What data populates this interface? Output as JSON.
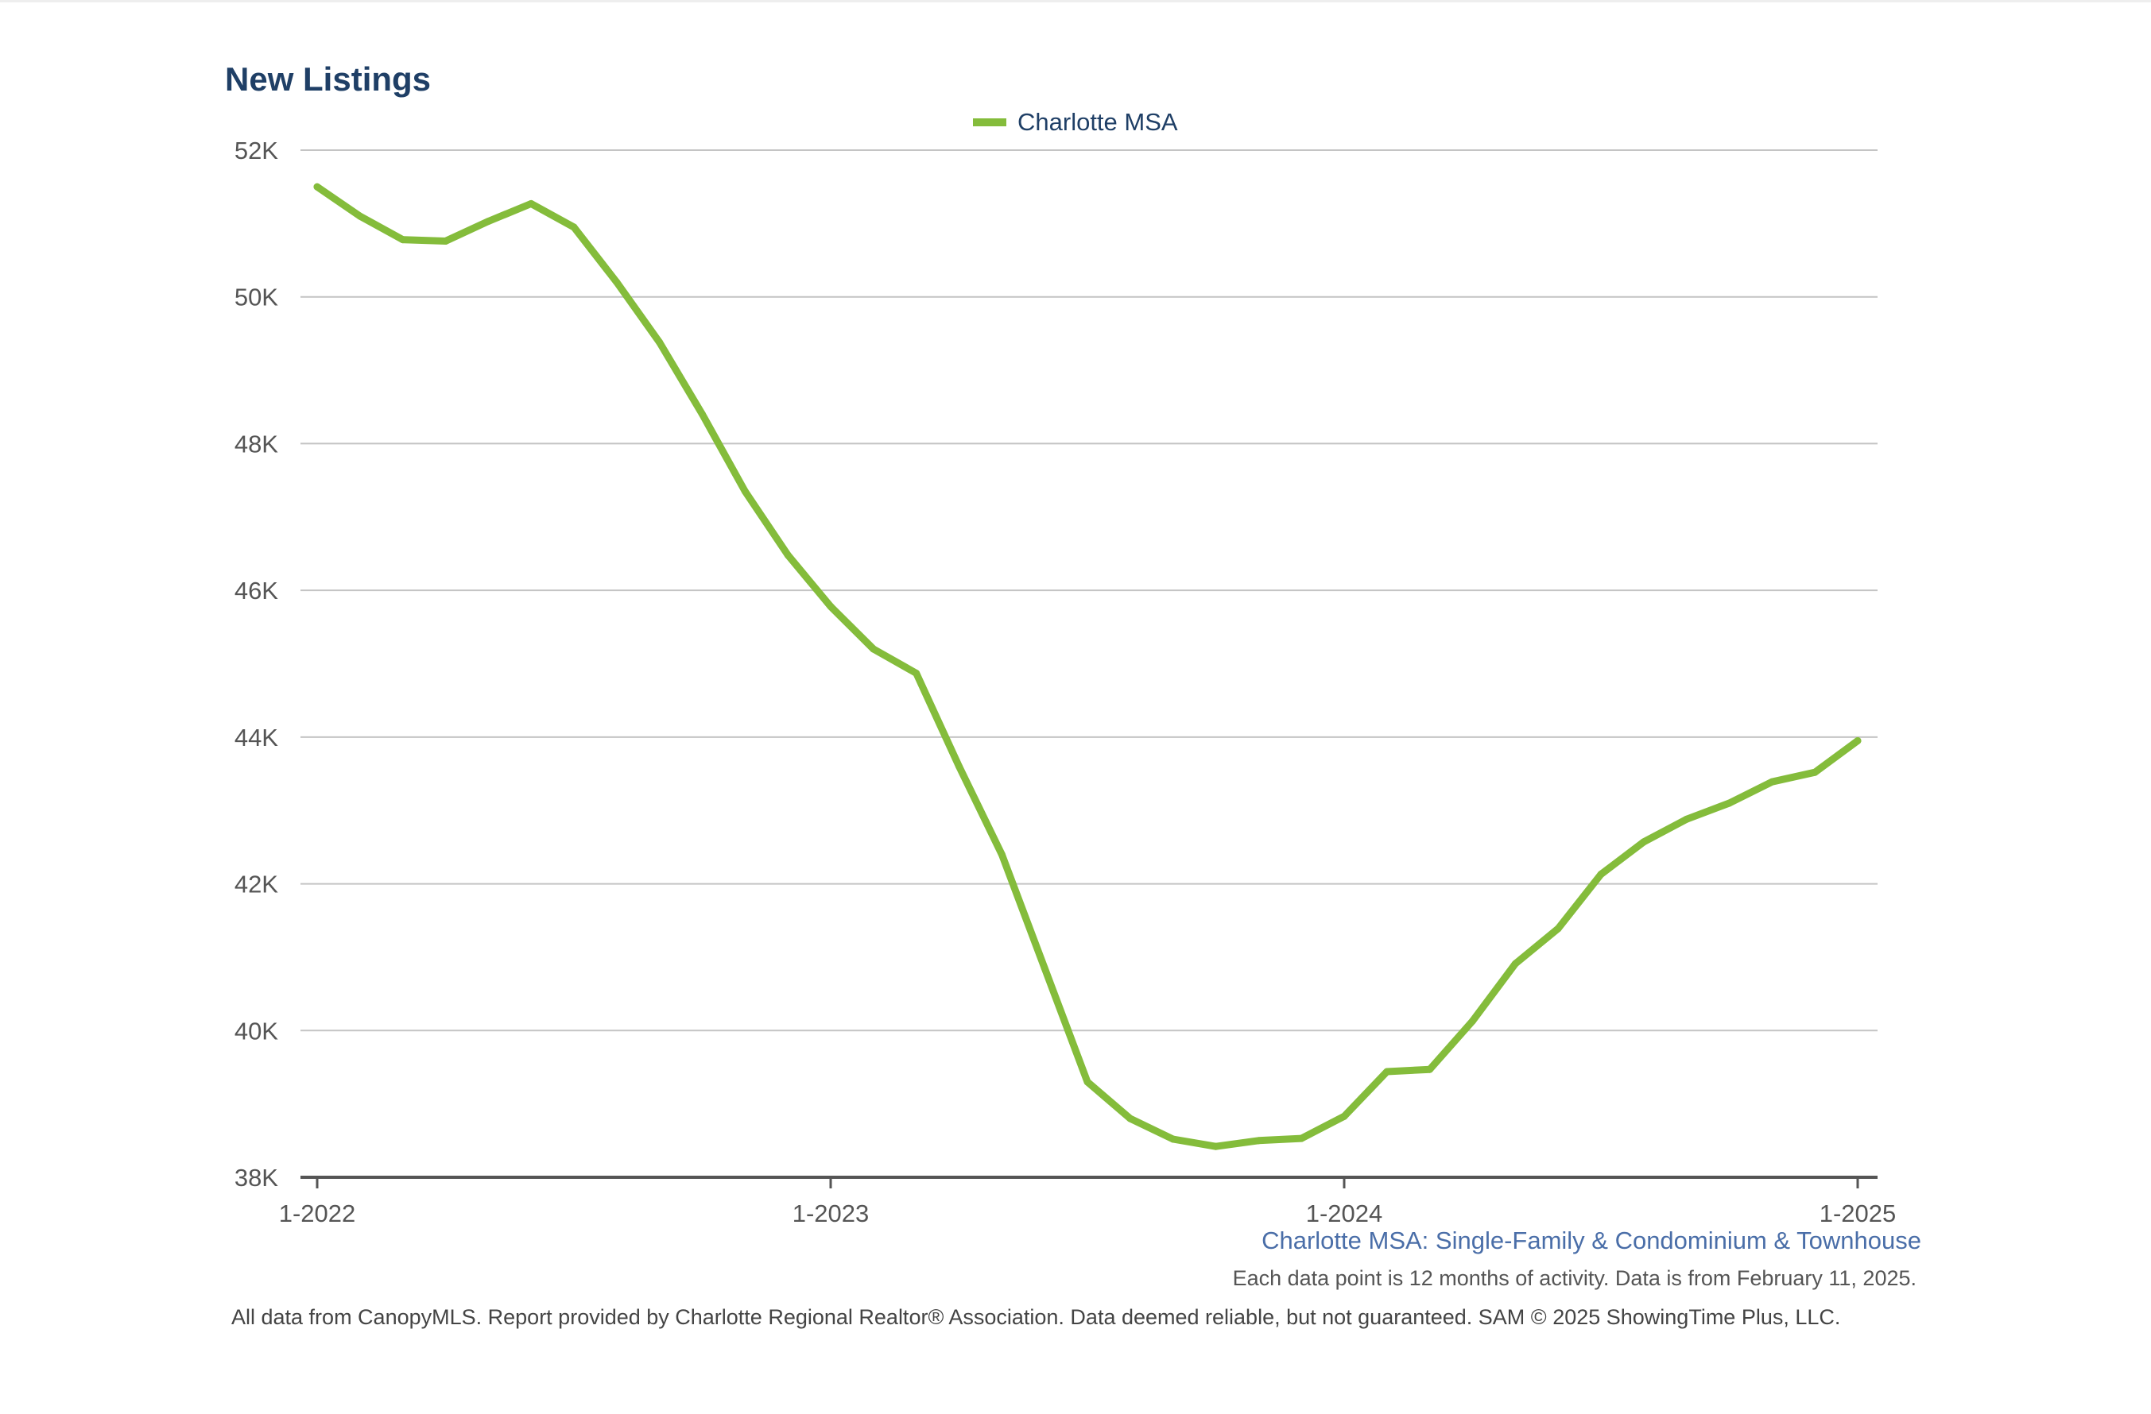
{
  "chart_data": {
    "type": "line",
    "title": "New Listings",
    "legend_position": "top-center",
    "grid": true,
    "xlabel": "",
    "ylabel": "",
    "ylim": [
      38000,
      52000
    ],
    "y_ticks": [
      38000,
      40000,
      42000,
      44000,
      46000,
      48000,
      50000,
      52000
    ],
    "y_tick_labels": [
      "38K",
      "40K",
      "42K",
      "44K",
      "46K",
      "48K",
      "50K",
      "52K"
    ],
    "x_tick_labels": [
      "1-2022",
      "1-2023",
      "1-2024",
      "1-2025"
    ],
    "x": [
      "1-2022",
      "2-2022",
      "3-2022",
      "4-2022",
      "5-2022",
      "6-2022",
      "7-2022",
      "8-2022",
      "9-2022",
      "10-2022",
      "11-2022",
      "12-2022",
      "1-2023",
      "2-2023",
      "3-2023",
      "4-2023",
      "5-2023",
      "6-2023",
      "7-2023",
      "8-2023",
      "9-2023",
      "10-2023",
      "11-2023",
      "12-2023",
      "1-2024",
      "2-2024",
      "3-2024",
      "4-2024",
      "5-2024",
      "6-2024",
      "7-2024",
      "8-2024",
      "9-2024",
      "10-2024",
      "11-2024",
      "12-2024",
      "1-2025"
    ],
    "series": [
      {
        "name": "Charlotte MSA",
        "color": "#84bc3b",
        "values": [
          51500,
          51100,
          50780,
          50760,
          51030,
          51270,
          50950,
          50200,
          49380,
          48400,
          47350,
          46480,
          45780,
          45200,
          44870,
          43600,
          42400,
          40850,
          39300,
          38800,
          38520,
          38420,
          38500,
          38530,
          38830,
          39440,
          39470,
          40130,
          40910,
          41390,
          42130,
          42570,
          42880,
          43100,
          43390,
          43520,
          43950
        ]
      }
    ]
  },
  "subtitle": "Charlotte MSA: Single-Family & Condominium & Townhouse",
  "note": "Each data point is 12 months of activity. Data is from February 11, 2025.",
  "footer": "All data from CanopyMLS. Report provided by Charlotte Regional Realtor® Association. Data deemed reliable, but not guaranteed. SAM © 2025 ShowingTime Plus, LLC."
}
